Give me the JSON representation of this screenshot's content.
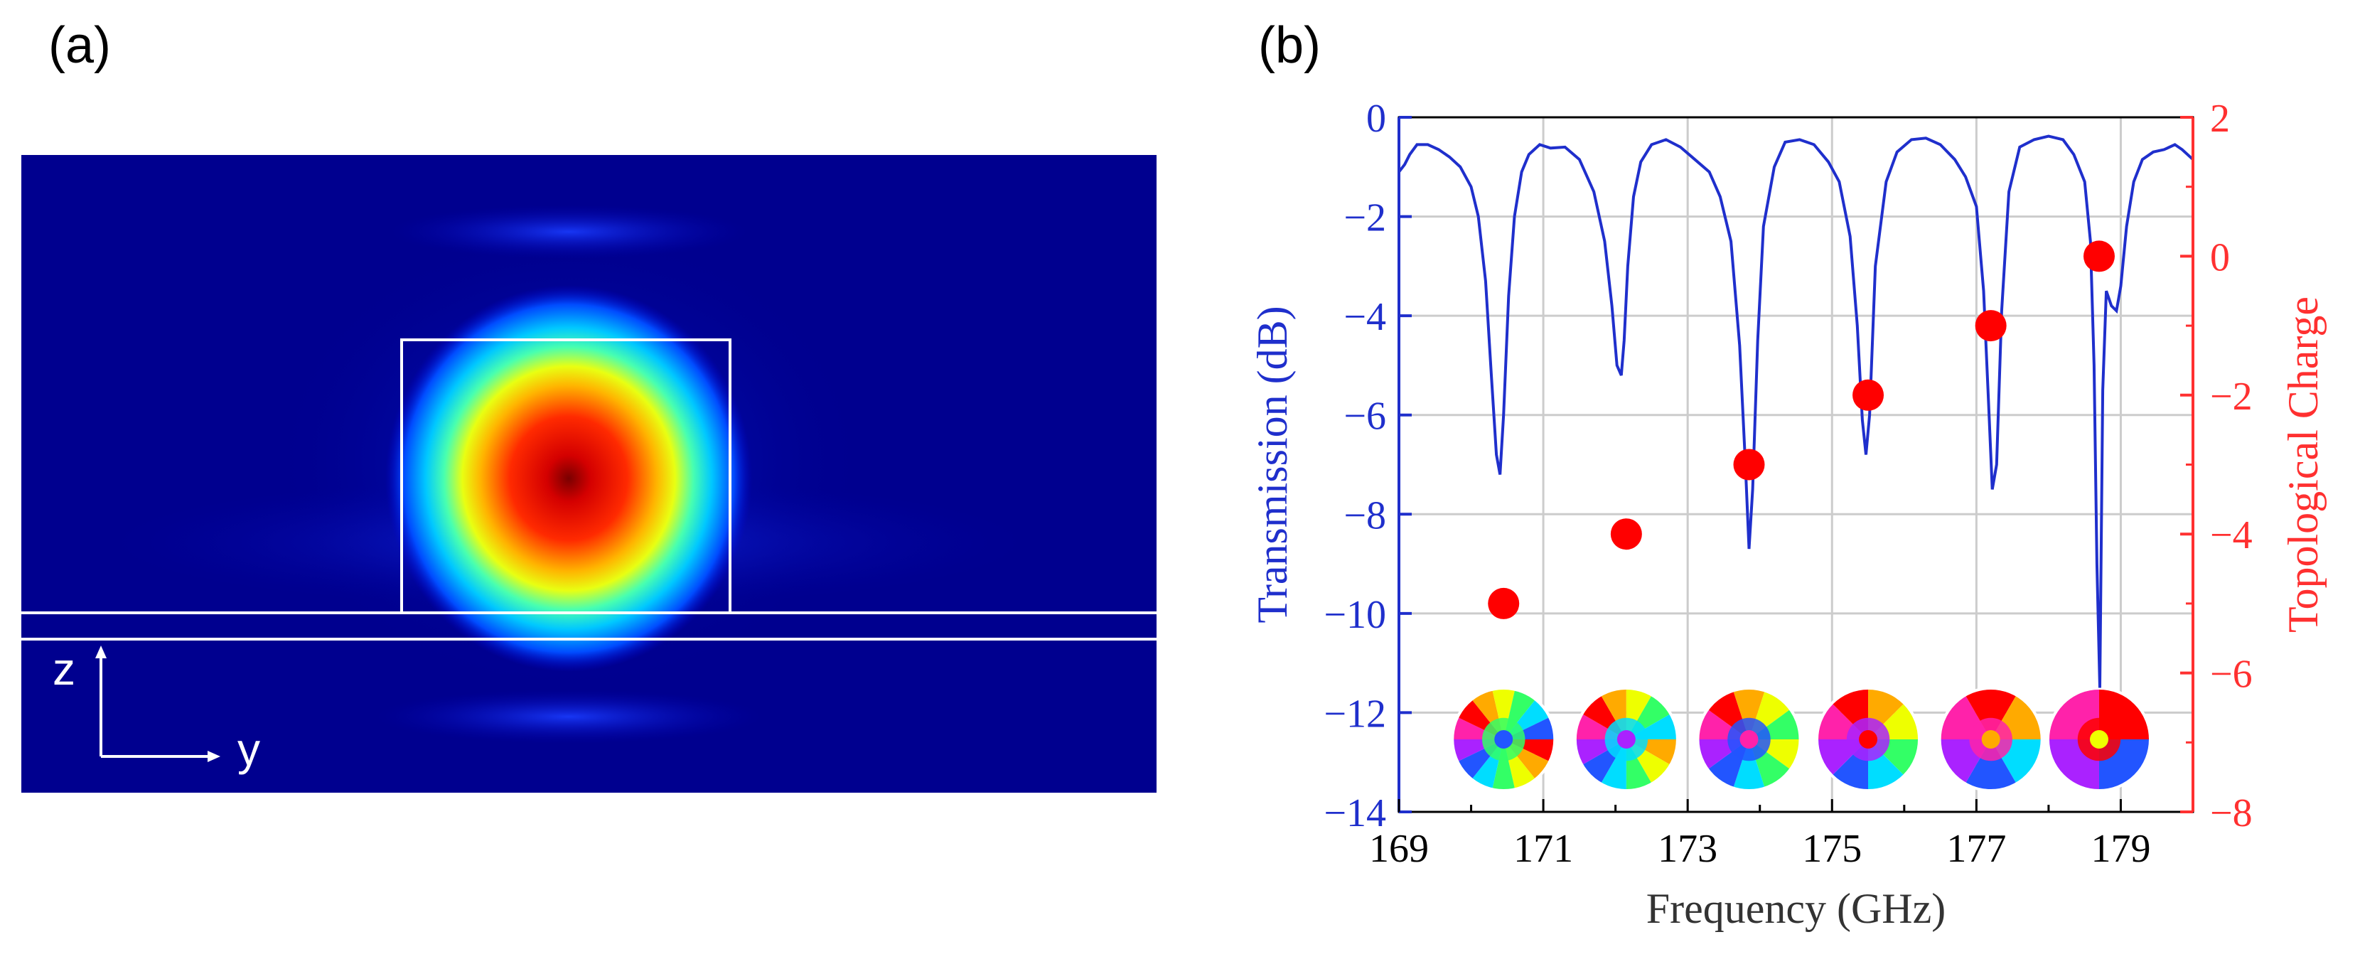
{
  "panel_a": {
    "label": "(a)",
    "axis_z_label": "z",
    "axis_y_label": "y",
    "colormap": "jet",
    "background_color": "#00008f",
    "outline_color": "#ffffff"
  },
  "panel_b": {
    "label": "(b)"
  },
  "chart_data": {
    "type": "line",
    "xlabel": "Frequency (GHz)",
    "ylabel": "Transmission (dB)",
    "y2label": "Topological Charge",
    "xlim": [
      169,
      180
    ],
    "ylim": [
      -14,
      0
    ],
    "y2lim": [
      -8,
      2
    ],
    "xticks": [
      169,
      171,
      173,
      175,
      177,
      179
    ],
    "yticks": [
      0,
      -2,
      -4,
      -6,
      -8,
      -10,
      -12,
      -14
    ],
    "y2ticks": [
      2,
      0,
      -2,
      -4,
      -6,
      -8
    ],
    "xtick_labels": [
      "169",
      "171",
      "173",
      "175",
      "177",
      "179"
    ],
    "ytick_labels": [
      "0",
      "−2",
      "−4",
      "−6",
      "−8",
      "−10",
      "−12",
      "−14"
    ],
    "y2tick_labels": [
      "2",
      "0",
      "−2",
      "−4",
      "−6",
      "−8"
    ],
    "grid": true,
    "transmission_color": "#1f2fcc",
    "charge_color": "#ff0000",
    "series": [
      {
        "name": "Transmission",
        "axis": "left",
        "x": [
          169.0,
          169.08,
          169.15,
          169.25,
          169.4,
          169.55,
          169.7,
          169.85,
          170.0,
          170.1,
          170.2,
          170.28,
          170.35,
          170.4,
          170.45,
          170.52,
          170.6,
          170.7,
          170.8,
          170.95,
          171.1,
          171.3,
          171.5,
          171.7,
          171.85,
          171.95,
          172.02,
          172.08,
          172.12,
          172.17,
          172.25,
          172.35,
          172.5,
          172.7,
          172.9,
          173.1,
          173.3,
          173.45,
          173.6,
          173.72,
          173.8,
          173.85,
          173.9,
          173.97,
          174.05,
          174.2,
          174.35,
          174.55,
          174.75,
          174.95,
          175.1,
          175.25,
          175.35,
          175.42,
          175.47,
          175.52,
          175.6,
          175.75,
          175.9,
          176.1,
          176.3,
          176.5,
          176.7,
          176.85,
          177.0,
          177.1,
          177.17,
          177.22,
          177.28,
          177.35,
          177.45,
          177.6,
          177.8,
          178.0,
          178.2,
          178.35,
          178.5,
          178.58,
          178.63,
          178.67,
          178.71,
          178.75,
          178.8,
          178.87,
          178.94,
          179.0,
          179.08,
          179.18,
          179.3,
          179.45,
          179.6,
          179.75,
          179.85,
          180.0
        ],
        "y": [
          -1.1,
          -0.95,
          -0.75,
          -0.55,
          -0.55,
          -0.65,
          -0.8,
          -1.0,
          -1.4,
          -2.0,
          -3.3,
          -5.2,
          -6.8,
          -7.2,
          -6.0,
          -3.6,
          -2.0,
          -1.1,
          -0.75,
          -0.55,
          -0.62,
          -0.6,
          -0.85,
          -1.5,
          -2.5,
          -3.8,
          -5.0,
          -5.2,
          -4.5,
          -3.0,
          -1.6,
          -0.9,
          -0.55,
          -0.45,
          -0.6,
          -0.85,
          -1.1,
          -1.6,
          -2.5,
          -4.6,
          -7.0,
          -8.7,
          -7.5,
          -4.5,
          -2.2,
          -1.0,
          -0.5,
          -0.45,
          -0.55,
          -0.9,
          -1.3,
          -2.4,
          -4.2,
          -6.1,
          -6.8,
          -6.0,
          -3.0,
          -1.3,
          -0.7,
          -0.45,
          -0.42,
          -0.55,
          -0.85,
          -1.2,
          -1.8,
          -3.5,
          -5.8,
          -7.5,
          -7.0,
          -3.9,
          -1.5,
          -0.6,
          -0.45,
          -0.38,
          -0.45,
          -0.75,
          -1.3,
          -2.5,
          -5.0,
          -9.0,
          -11.5,
          -5.5,
          -3.5,
          -3.8,
          -3.9,
          -3.4,
          -2.2,
          -1.3,
          -0.85,
          -0.7,
          -0.65,
          -0.55,
          -0.65,
          -0.85
        ]
      },
      {
        "name": "Topological Charge",
        "axis": "right",
        "x": [
          170.45,
          172.15,
          173.85,
          175.5,
          177.2,
          178.7
        ],
        "y": [
          -5,
          -4,
          -3,
          -2,
          -1,
          0
        ]
      }
    ]
  }
}
